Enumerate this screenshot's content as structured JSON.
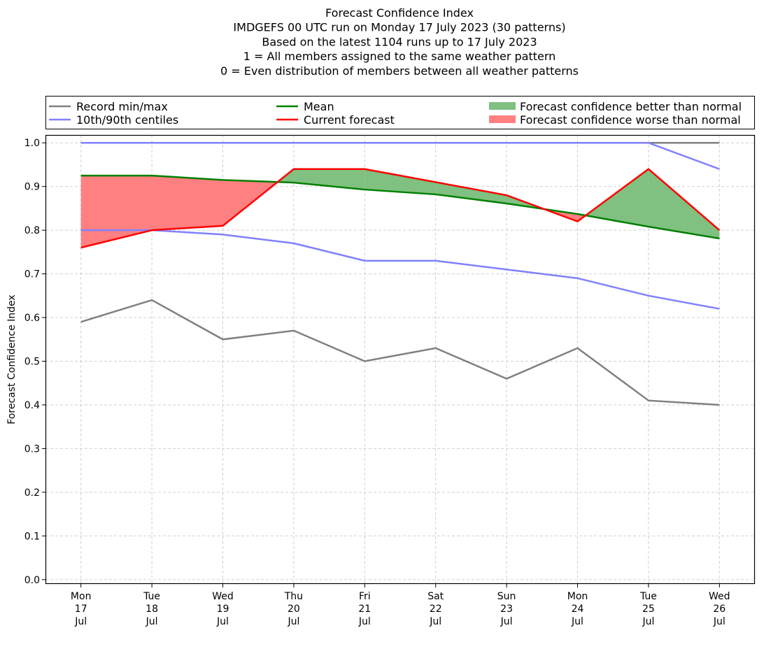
{
  "chart_data": {
    "type": "line",
    "title_lines": [
      "Forecast Confidence Index",
      "IMDGEFS 00 UTC run on Monday 17 July 2023 (30 patterns)",
      "Based on the latest 1104 runs up to 17 July 2023",
      "1 = All members assigned to the same weather pattern",
      "0 = Even distribution of members between all weather patterns"
    ],
    "ylabel": "Forecast Confidence Index",
    "xlabel": "",
    "ylim": [
      -0.01,
      1.018
    ],
    "yticks": [
      "0.0",
      "0.1",
      "0.2",
      "0.3",
      "0.4",
      "0.5",
      "0.6",
      "0.7",
      "0.8",
      "0.9",
      "1.0"
    ],
    "categories": [
      [
        "Mon",
        "17",
        "Jul"
      ],
      [
        "Tue",
        "18",
        "Jul"
      ],
      [
        "Wed",
        "19",
        "Jul"
      ],
      [
        "Thu",
        "20",
        "Jul"
      ],
      [
        "Fri",
        "21",
        "Jul"
      ],
      [
        "Sat",
        "22",
        "Jul"
      ],
      [
        "Sun",
        "23",
        "Jul"
      ],
      [
        "Mon",
        "24",
        "Jul"
      ],
      [
        "Tue",
        "25",
        "Jul"
      ],
      [
        "Wed",
        "26",
        "Jul"
      ]
    ],
    "grid": true,
    "legend_placement": "top",
    "series": [
      {
        "name": "Record min",
        "legend": "Record min/max",
        "color": "#808080",
        "values": [
          0.59,
          0.64,
          0.55,
          0.57,
          0.5,
          0.53,
          0.46,
          0.53,
          0.41,
          0.4
        ]
      },
      {
        "name": "Record max",
        "color": "#808080",
        "values": [
          1,
          1,
          1,
          1,
          1,
          1,
          1,
          1,
          1,
          1
        ]
      },
      {
        "name": "10th centile",
        "legend": "10th/90th centiles",
        "color": "#8080ff",
        "values": [
          0.8,
          0.8,
          0.79,
          0.77,
          0.73,
          0.73,
          0.71,
          0.69,
          0.65,
          0.62
        ]
      },
      {
        "name": "90th centile",
        "color": "#8080ff",
        "values": [
          1,
          1,
          1,
          1,
          1,
          1,
          1,
          1,
          1,
          0.94
        ]
      },
      {
        "name": "Mean",
        "legend": "Mean",
        "color": "#008000",
        "values": [
          0.925,
          0.925,
          0.915,
          0.909,
          0.893,
          0.882,
          0.861,
          0.837,
          0.808,
          0.781
        ]
      },
      {
        "name": "Current forecast",
        "legend": "Current forecast",
        "color": "#ff0000",
        "values": [
          0.76,
          0.8,
          0.81,
          0.94,
          0.94,
          0.91,
          0.88,
          0.82,
          0.94,
          0.8
        ]
      }
    ],
    "fills": [
      {
        "legend": "Forecast confidence better than normal",
        "color": "#80c080"
      },
      {
        "legend": "Forecast confidence worse than normal",
        "color": "#ff8080"
      }
    ]
  }
}
